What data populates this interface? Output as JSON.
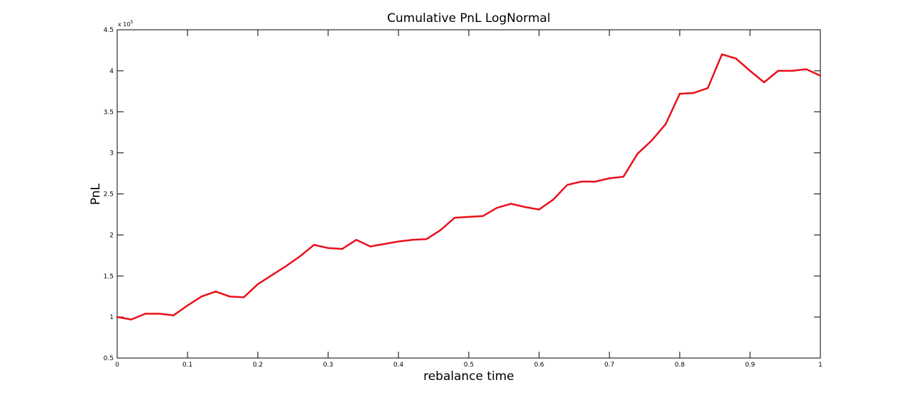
{
  "chart_data": {
    "type": "line",
    "title": "Cumulative PnL LogNormal",
    "xlabel": "rebalance time",
    "ylabel": "PnL",
    "y_exponent_label": "x 10",
    "y_exponent_power": "5",
    "xlim": [
      0,
      1
    ],
    "ylim": [
      0.5,
      4.5
    ],
    "x_ticks": [
      0,
      0.1,
      0.2,
      0.3,
      0.4,
      0.5,
      0.6,
      0.7,
      0.8,
      0.9,
      1
    ],
    "x_tick_labels": [
      "0",
      "0.1",
      "0.2",
      "0.3",
      "0.4",
      "0.5",
      "0.6",
      "0.7",
      "0.8",
      "0.9",
      "1"
    ],
    "y_ticks": [
      0.5,
      1,
      1.5,
      2,
      2.5,
      3,
      3.5,
      4,
      4.5
    ],
    "y_tick_labels": [
      "0.5",
      "1",
      "1.5",
      "2",
      "2.5",
      "3",
      "3.5",
      "4",
      "4.5"
    ],
    "grid": false,
    "series": [
      {
        "color": "#e8101a",
        "x": [
          0,
          0.02,
          0.04,
          0.06,
          0.08,
          0.1,
          0.12,
          0.14,
          0.16,
          0.18,
          0.2,
          0.22,
          0.24,
          0.26,
          0.28,
          0.3,
          0.32,
          0.34,
          0.36,
          0.38,
          0.4,
          0.42,
          0.44,
          0.46,
          0.48,
          0.5,
          0.52,
          0.54,
          0.56,
          0.58,
          0.6,
          0.62,
          0.64,
          0.66,
          0.68,
          0.7,
          0.72,
          0.74,
          0.76,
          0.78,
          0.8,
          0.82,
          0.84,
          0.86,
          0.88,
          0.9,
          0.92,
          0.94,
          0.96,
          0.98,
          1
        ],
        "y": [
          1.0,
          0.97,
          1.04,
          1.04,
          1.02,
          1.14,
          1.25,
          1.31,
          1.25,
          1.24,
          1.4,
          1.51,
          1.62,
          1.74,
          1.88,
          1.84,
          1.83,
          1.94,
          1.86,
          1.89,
          1.92,
          1.94,
          1.95,
          2.06,
          2.21,
          2.22,
          2.23,
          2.33,
          2.38,
          2.34,
          2.31,
          2.43,
          2.61,
          2.65,
          2.65,
          2.69,
          2.71,
          2.99,
          3.15,
          3.35,
          3.72,
          3.73,
          3.79,
          4.2,
          4.15,
          4.0,
          3.86,
          4.0,
          4.0,
          4.02,
          3.94
        ]
      }
    ]
  }
}
